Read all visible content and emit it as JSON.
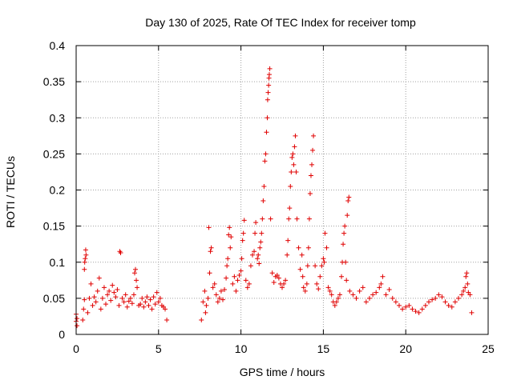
{
  "chart_data": {
    "type": "scatter",
    "title": "Day 130 of 2025, Rate Of TEC Index for receiver tomp",
    "xlabel": "GPS time / hours",
    "ylabel": "ROTI / TECUs",
    "xlim": [
      0,
      25
    ],
    "ylim": [
      0,
      0.4
    ],
    "xticks": [
      0,
      5,
      10,
      15,
      20,
      25
    ],
    "xtick_labels": [
      "0",
      "5",
      "10",
      "15",
      "20",
      "25"
    ],
    "yticks": [
      0,
      0.05,
      0.1,
      0.15,
      0.2,
      0.25,
      0.3,
      0.35,
      0.4
    ],
    "ytick_labels": [
      "0",
      "0.05",
      "0.1",
      "0.15",
      "0.2",
      "0.25",
      "0.3",
      "0.35",
      "0.4"
    ],
    "grid": true,
    "marker": "+",
    "marker_color": "#e00000",
    "series": [
      {
        "values": [
          [
            0.0,
            0.018
          ],
          [
            0.0,
            0.028
          ],
          [
            0.05,
            0.012
          ],
          [
            0.05,
            0.022
          ],
          [
            0.4,
            0.02
          ],
          [
            0.45,
            0.035
          ],
          [
            0.5,
            0.048
          ],
          [
            0.5,
            0.09
          ],
          [
            0.52,
            0.1
          ],
          [
            0.55,
            0.105
          ],
          [
            0.58,
            0.117
          ],
          [
            0.6,
            0.11
          ],
          [
            0.7,
            0.03
          ],
          [
            0.8,
            0.05
          ],
          [
            0.9,
            0.07
          ],
          [
            1.0,
            0.04
          ],
          [
            1.1,
            0.052
          ],
          [
            1.2,
            0.045
          ],
          [
            1.3,
            0.06
          ],
          [
            1.4,
            0.078
          ],
          [
            1.5,
            0.035
          ],
          [
            1.6,
            0.05
          ],
          [
            1.7,
            0.065
          ],
          [
            1.8,
            0.042
          ],
          [
            1.9,
            0.055
          ],
          [
            2.0,
            0.06
          ],
          [
            2.1,
            0.047
          ],
          [
            2.2,
            0.068
          ],
          [
            2.3,
            0.058
          ],
          [
            2.4,
            0.052
          ],
          [
            2.5,
            0.062
          ],
          [
            2.6,
            0.04
          ],
          [
            2.65,
            0.115
          ],
          [
            2.7,
            0.113
          ],
          [
            2.8,
            0.05
          ],
          [
            2.9,
            0.045
          ],
          [
            3.0,
            0.055
          ],
          [
            3.1,
            0.038
          ],
          [
            3.2,
            0.046
          ],
          [
            3.3,
            0.05
          ],
          [
            3.4,
            0.043
          ],
          [
            3.5,
            0.055
          ],
          [
            3.55,
            0.085
          ],
          [
            3.6,
            0.09
          ],
          [
            3.65,
            0.075
          ],
          [
            3.7,
            0.065
          ],
          [
            3.8,
            0.04
          ],
          [
            3.9,
            0.042
          ],
          [
            4.0,
            0.05
          ],
          [
            4.1,
            0.038
          ],
          [
            4.2,
            0.045
          ],
          [
            4.3,
            0.052
          ],
          [
            4.4,
            0.04
          ],
          [
            4.5,
            0.048
          ],
          [
            4.6,
            0.035
          ],
          [
            4.7,
            0.052
          ],
          [
            4.8,
            0.042
          ],
          [
            4.9,
            0.058
          ],
          [
            5.0,
            0.045
          ],
          [
            5.1,
            0.05
          ],
          [
            5.2,
            0.04
          ],
          [
            5.3,
            0.038
          ],
          [
            5.4,
            0.035
          ],
          [
            5.5,
            0.02
          ],
          [
            7.6,
            0.02
          ],
          [
            7.7,
            0.045
          ],
          [
            7.8,
            0.06
          ],
          [
            7.85,
            0.03
          ],
          [
            7.9,
            0.04
          ],
          [
            8.0,
            0.05
          ],
          [
            8.05,
            0.148
          ],
          [
            8.1,
            0.085
          ],
          [
            8.15,
            0.115
          ],
          [
            8.2,
            0.12
          ],
          [
            8.3,
            0.065
          ],
          [
            8.4,
            0.07
          ],
          [
            8.5,
            0.055
          ],
          [
            8.6,
            0.045
          ],
          [
            8.7,
            0.05
          ],
          [
            8.8,
            0.06
          ],
          [
            8.9,
            0.048
          ],
          [
            9.0,
            0.062
          ],
          [
            9.1,
            0.078
          ],
          [
            9.15,
            0.095
          ],
          [
            9.2,
            0.105
          ],
          [
            9.25,
            0.138
          ],
          [
            9.3,
            0.148
          ],
          [
            9.35,
            0.12
          ],
          [
            9.4,
            0.135
          ],
          [
            9.5,
            0.07
          ],
          [
            9.6,
            0.08
          ],
          [
            9.7,
            0.06
          ],
          [
            9.8,
            0.075
          ],
          [
            9.9,
            0.082
          ],
          [
            10.0,
            0.088
          ],
          [
            10.05,
            0.105
          ],
          [
            10.1,
            0.13
          ],
          [
            10.15,
            0.14
          ],
          [
            10.2,
            0.158
          ],
          [
            10.3,
            0.075
          ],
          [
            10.4,
            0.065
          ],
          [
            10.5,
            0.07
          ],
          [
            10.6,
            0.095
          ],
          [
            10.7,
            0.11
          ],
          [
            10.8,
            0.115
          ],
          [
            10.85,
            0.14
          ],
          [
            10.9,
            0.155
          ],
          [
            11.0,
            0.105
          ],
          [
            11.05,
            0.11
          ],
          [
            11.1,
            0.098
          ],
          [
            11.15,
            0.12
          ],
          [
            11.2,
            0.128
          ],
          [
            11.25,
            0.14
          ],
          [
            11.3,
            0.16
          ],
          [
            11.35,
            0.185
          ],
          [
            11.4,
            0.205
          ],
          [
            11.45,
            0.24
          ],
          [
            11.5,
            0.25
          ],
          [
            11.55,
            0.28
          ],
          [
            11.6,
            0.3
          ],
          [
            11.62,
            0.325
          ],
          [
            11.65,
            0.335
          ],
          [
            11.68,
            0.345
          ],
          [
            11.7,
            0.355
          ],
          [
            11.72,
            0.36
          ],
          [
            11.75,
            0.368
          ],
          [
            11.8,
            0.16
          ],
          [
            11.9,
            0.085
          ],
          [
            12.0,
            0.072
          ],
          [
            12.1,
            0.08
          ],
          [
            12.2,
            0.082
          ],
          [
            12.3,
            0.078
          ],
          [
            12.4,
            0.07
          ],
          [
            12.5,
            0.065
          ],
          [
            12.6,
            0.07
          ],
          [
            12.7,
            0.075
          ],
          [
            12.8,
            0.11
          ],
          [
            12.85,
            0.13
          ],
          [
            12.9,
            0.16
          ],
          [
            12.95,
            0.175
          ],
          [
            13.0,
            0.205
          ],
          [
            13.05,
            0.225
          ],
          [
            13.1,
            0.245
          ],
          [
            13.15,
            0.25
          ],
          [
            13.2,
            0.235
          ],
          [
            13.25,
            0.26
          ],
          [
            13.3,
            0.275
          ],
          [
            13.35,
            0.225
          ],
          [
            13.4,
            0.16
          ],
          [
            13.5,
            0.12
          ],
          [
            13.6,
            0.09
          ],
          [
            13.7,
            0.11
          ],
          [
            13.75,
            0.08
          ],
          [
            13.8,
            0.065
          ],
          [
            13.9,
            0.06
          ],
          [
            14.0,
            0.07
          ],
          [
            14.05,
            0.095
          ],
          [
            14.1,
            0.12
          ],
          [
            14.15,
            0.16
          ],
          [
            14.2,
            0.195
          ],
          [
            14.25,
            0.22
          ],
          [
            14.3,
            0.235
          ],
          [
            14.35,
            0.255
          ],
          [
            14.4,
            0.275
          ],
          [
            14.5,
            0.095
          ],
          [
            14.6,
            0.07
          ],
          [
            14.7,
            0.063
          ],
          [
            14.8,
            0.08
          ],
          [
            14.9,
            0.095
          ],
          [
            15.0,
            0.105
          ],
          [
            15.05,
            0.1
          ],
          [
            15.1,
            0.14
          ],
          [
            15.2,
            0.12
          ],
          [
            15.3,
            0.065
          ],
          [
            15.4,
            0.06
          ],
          [
            15.5,
            0.055
          ],
          [
            15.6,
            0.045
          ],
          [
            15.7,
            0.04
          ],
          [
            15.8,
            0.045
          ],
          [
            15.9,
            0.05
          ],
          [
            16.0,
            0.055
          ],
          [
            16.1,
            0.08
          ],
          [
            16.15,
            0.1
          ],
          [
            16.2,
            0.125
          ],
          [
            16.25,
            0.14
          ],
          [
            16.3,
            0.15
          ],
          [
            16.35,
            0.1
          ],
          [
            16.4,
            0.075
          ],
          [
            16.45,
            0.165
          ],
          [
            16.5,
            0.185
          ],
          [
            16.55,
            0.19
          ],
          [
            16.6,
            0.06
          ],
          [
            16.8,
            0.055
          ],
          [
            17.0,
            0.05
          ],
          [
            17.2,
            0.06
          ],
          [
            17.4,
            0.065
          ],
          [
            17.6,
            0.045
          ],
          [
            17.8,
            0.05
          ],
          [
            18.0,
            0.055
          ],
          [
            18.2,
            0.058
          ],
          [
            18.4,
            0.065
          ],
          [
            18.5,
            0.07
          ],
          [
            18.6,
            0.08
          ],
          [
            18.8,
            0.055
          ],
          [
            19.0,
            0.062
          ],
          [
            19.2,
            0.05
          ],
          [
            19.4,
            0.045
          ],
          [
            19.6,
            0.04
          ],
          [
            19.8,
            0.035
          ],
          [
            20.0,
            0.038
          ],
          [
            20.2,
            0.04
          ],
          [
            20.4,
            0.035
          ],
          [
            20.6,
            0.032
          ],
          [
            20.8,
            0.03
          ],
          [
            21.0,
            0.035
          ],
          [
            21.2,
            0.04
          ],
          [
            21.4,
            0.045
          ],
          [
            21.6,
            0.048
          ],
          [
            21.8,
            0.05
          ],
          [
            22.0,
            0.055
          ],
          [
            22.2,
            0.052
          ],
          [
            22.4,
            0.045
          ],
          [
            22.6,
            0.04
          ],
          [
            22.8,
            0.038
          ],
          [
            23.0,
            0.045
          ],
          [
            23.2,
            0.05
          ],
          [
            23.4,
            0.055
          ],
          [
            23.5,
            0.06
          ],
          [
            23.6,
            0.065
          ],
          [
            23.65,
            0.08
          ],
          [
            23.7,
            0.085
          ],
          [
            23.75,
            0.07
          ],
          [
            23.8,
            0.058
          ],
          [
            23.9,
            0.055
          ],
          [
            24.0,
            0.03
          ]
        ]
      }
    ]
  }
}
